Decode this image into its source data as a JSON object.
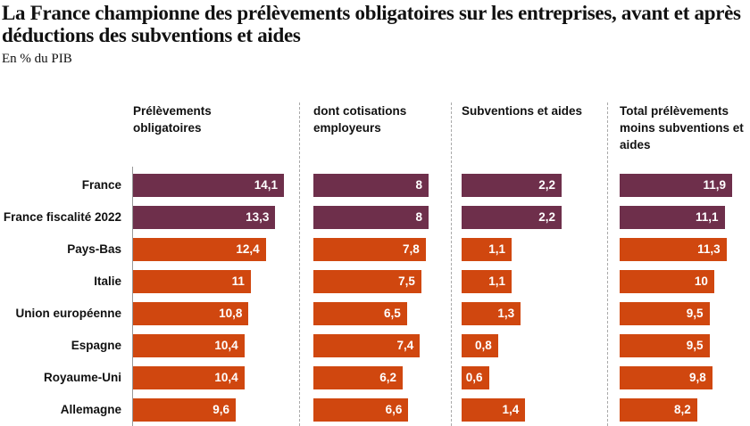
{
  "chart_data": {
    "type": "bar",
    "title": "La France championne des prélèvements obligatoires sur les entreprises, avant et après déductions des subventions et aides",
    "subtitle": "En % du PIB",
    "categories": [
      "France",
      "France fiscalité 2022",
      "Pays-Bas",
      "Italie",
      "Union européenne",
      "Espagne",
      "Royaume-Uni",
      "Allemagne"
    ],
    "colors": [
      "#6e2f4b",
      "#6e2f4b",
      "#d0470f",
      "#d0470f",
      "#d0470f",
      "#d0470f",
      "#d0470f",
      "#d0470f"
    ],
    "series": [
      {
        "name": "Prélèvements obligatoires",
        "values": [
          14.1,
          13.3,
          12.4,
          11,
          10.8,
          10.4,
          10.4,
          9.6
        ],
        "value_labels": [
          "14,1",
          "13,3",
          "12,4",
          "11",
          "10,8",
          "10,4",
          "10,4",
          "9,6"
        ]
      },
      {
        "name": "dont cotisations employeurs",
        "values": [
          8,
          8,
          7.8,
          7.5,
          6.5,
          7.4,
          6.2,
          6.6
        ],
        "value_labels": [
          "8",
          "8",
          "7,8",
          "7,5",
          "6,5",
          "7,4",
          "6,2",
          "6,6"
        ]
      },
      {
        "name": "Subventions et aides",
        "values": [
          2.2,
          2.2,
          1.1,
          1.1,
          1.3,
          0.8,
          0.6,
          1.4
        ],
        "value_labels": [
          "2,2",
          "2,2",
          "1,1",
          "1,1",
          "1,3",
          "0,8",
          "0,6",
          "1,4"
        ]
      },
      {
        "name": "Total prélèvements moins subventions et aides",
        "values": [
          11.9,
          11.1,
          11.3,
          10,
          9.5,
          9.5,
          9.8,
          8.2
        ],
        "value_labels": [
          "11,9",
          "11,1",
          "11,3",
          "10",
          "9,5",
          "9,5",
          "9,8",
          "8,2"
        ]
      }
    ]
  }
}
